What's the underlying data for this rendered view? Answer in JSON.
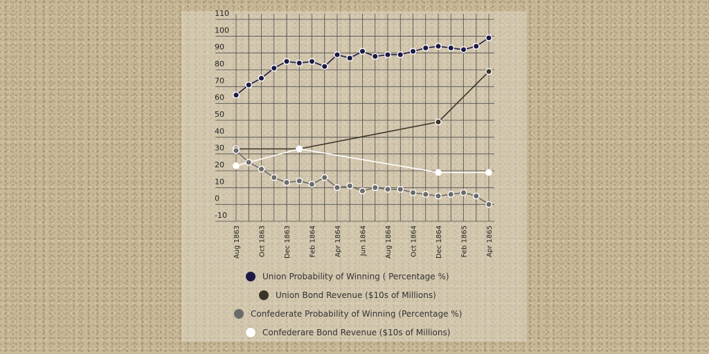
{
  "chart_data": {
    "type": "line",
    "x_ticks": [
      "Aug 1863",
      "Oct 1863",
      "Dec 1863",
      "Feb 1864",
      "Apr 1864",
      "Jun 1864",
      "Aug 1864",
      "Oct 1864",
      "Dec 1864",
      "Feb 1865",
      "Apr 1865"
    ],
    "y_ticks": [
      110,
      100,
      90,
      80,
      70,
      60,
      50,
      40,
      30,
      20,
      10,
      0,
      -10
    ],
    "ylim": [
      -10,
      110
    ],
    "grid": true,
    "legend_position": "bottom",
    "series": [
      {
        "name": "Union Probability of Winning ( Percentage %)",
        "color": "#1b1a45",
        "x": [
          "Aug 1863",
          "Sep 1863",
          "Oct 1863",
          "Nov 1863",
          "Dec 1863",
          "Jan 1864",
          "Feb 1864",
          "Mar 1864",
          "Apr 1864",
          "May 1864",
          "Jun 1864",
          "Jul 1864",
          "Aug 1864",
          "Sep 1864",
          "Oct 1864",
          "Nov 1864",
          "Dec 1864",
          "Jan 1865",
          "Feb 1865",
          "Mar 1865",
          "Apr 1865"
        ],
        "values": [
          65,
          71,
          75,
          81,
          85,
          84,
          85,
          82,
          89,
          87,
          91,
          88,
          89,
          89,
          91,
          93,
          94,
          93,
          92,
          94,
          99
        ]
      },
      {
        "name": "Union Bond Revenue ($10s of Millions)",
        "color": "#3b3428",
        "x": [
          "Aug 1863",
          "Jan 1864",
          "Dec 1864",
          "Apr 1865"
        ],
        "values": [
          33,
          33,
          49,
          79
        ]
      },
      {
        "name": "Confederate Probability of Winning (Percentage %)",
        "color": "#6b6b6b",
        "x": [
          "Aug 1863",
          "Sep 1863",
          "Oct 1863",
          "Nov 1863",
          "Dec 1863",
          "Jan 1864",
          "Feb 1864",
          "Mar 1864",
          "Apr 1864",
          "May 1864",
          "Jun 1864",
          "Jul 1864",
          "Aug 1864",
          "Sep 1864",
          "Oct 1864",
          "Nov 1864",
          "Dec 1864",
          "Jan 1865",
          "Feb 1865",
          "Mar 1865",
          "Apr 1865"
        ],
        "values": [
          32,
          25,
          21,
          16,
          13,
          14,
          12,
          16,
          10,
          11,
          8,
          10,
          9,
          9,
          7,
          6,
          5,
          6,
          7,
          5,
          0
        ]
      },
      {
        "name": "Confederare Bond Revenue ($10s of Millions)",
        "color": "#ffffff",
        "x": [
          "Aug 1863",
          "Jan 1864",
          "Dec 1864",
          "Apr 1865"
        ],
        "values": [
          23,
          33,
          19,
          19
        ]
      }
    ]
  }
}
